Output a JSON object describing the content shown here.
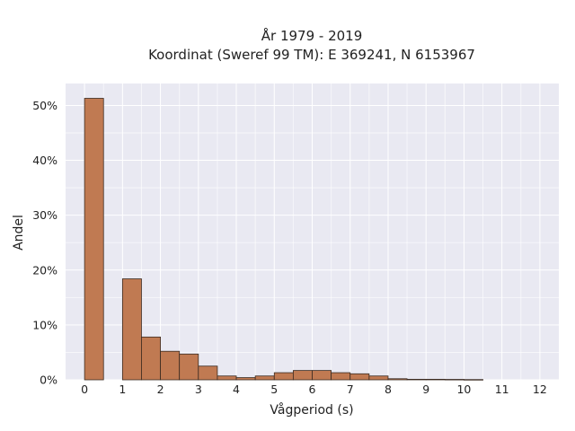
{
  "chart_data": {
    "type": "bar",
    "title_lines": [
      "År 1979 - 2019",
      "Koordinat (Sweref 99 TM): E 369241, N 6153967"
    ],
    "xlabel": "Vågperiod (s)",
    "ylabel": "Andel",
    "xlim": [
      -0.5,
      12.5
    ],
    "ylim": [
      0,
      0.54
    ],
    "x_ticks": [
      0,
      1,
      2,
      3,
      4,
      5,
      6,
      7,
      8,
      9,
      10,
      11,
      12
    ],
    "x_tick_labels": [
      "0",
      "1",
      "2",
      "3",
      "4",
      "5",
      "6",
      "7",
      "8",
      "9",
      "10",
      "11",
      "12"
    ],
    "y_ticks": [
      0,
      0.1,
      0.2,
      0.3,
      0.4,
      0.5
    ],
    "y_tick_labels": [
      "0%",
      "10%",
      "20%",
      "30%",
      "40%",
      "50%"
    ],
    "bin_width": 0.5,
    "bins": [
      {
        "x0": 0.0,
        "value": 0.513
      },
      {
        "x0": 0.5,
        "value": 0.0
      },
      {
        "x0": 1.0,
        "value": 0.184
      },
      {
        "x0": 1.5,
        "value": 0.078
      },
      {
        "x0": 2.0,
        "value": 0.052
      },
      {
        "x0": 2.5,
        "value": 0.047
      },
      {
        "x0": 3.0,
        "value": 0.025
      },
      {
        "x0": 3.5,
        "value": 0.007
      },
      {
        "x0": 4.0,
        "value": 0.004
      },
      {
        "x0": 4.5,
        "value": 0.007
      },
      {
        "x0": 5.0,
        "value": 0.013
      },
      {
        "x0": 5.5,
        "value": 0.017
      },
      {
        "x0": 6.0,
        "value": 0.017
      },
      {
        "x0": 6.5,
        "value": 0.013
      },
      {
        "x0": 7.0,
        "value": 0.011
      },
      {
        "x0": 7.5,
        "value": 0.007
      },
      {
        "x0": 8.0,
        "value": 0.002
      },
      {
        "x0": 8.5,
        "value": 0.001
      },
      {
        "x0": 9.0,
        "value": 0.001
      },
      {
        "x0": 9.5,
        "value": 0.0008
      },
      {
        "x0": 10.0,
        "value": 0.0005
      }
    ],
    "bar_color": "#c07a52",
    "bar_edge_color": "#3a2a20",
    "background_color": "#e9e9f2",
    "grid": true,
    "legend": false
  }
}
